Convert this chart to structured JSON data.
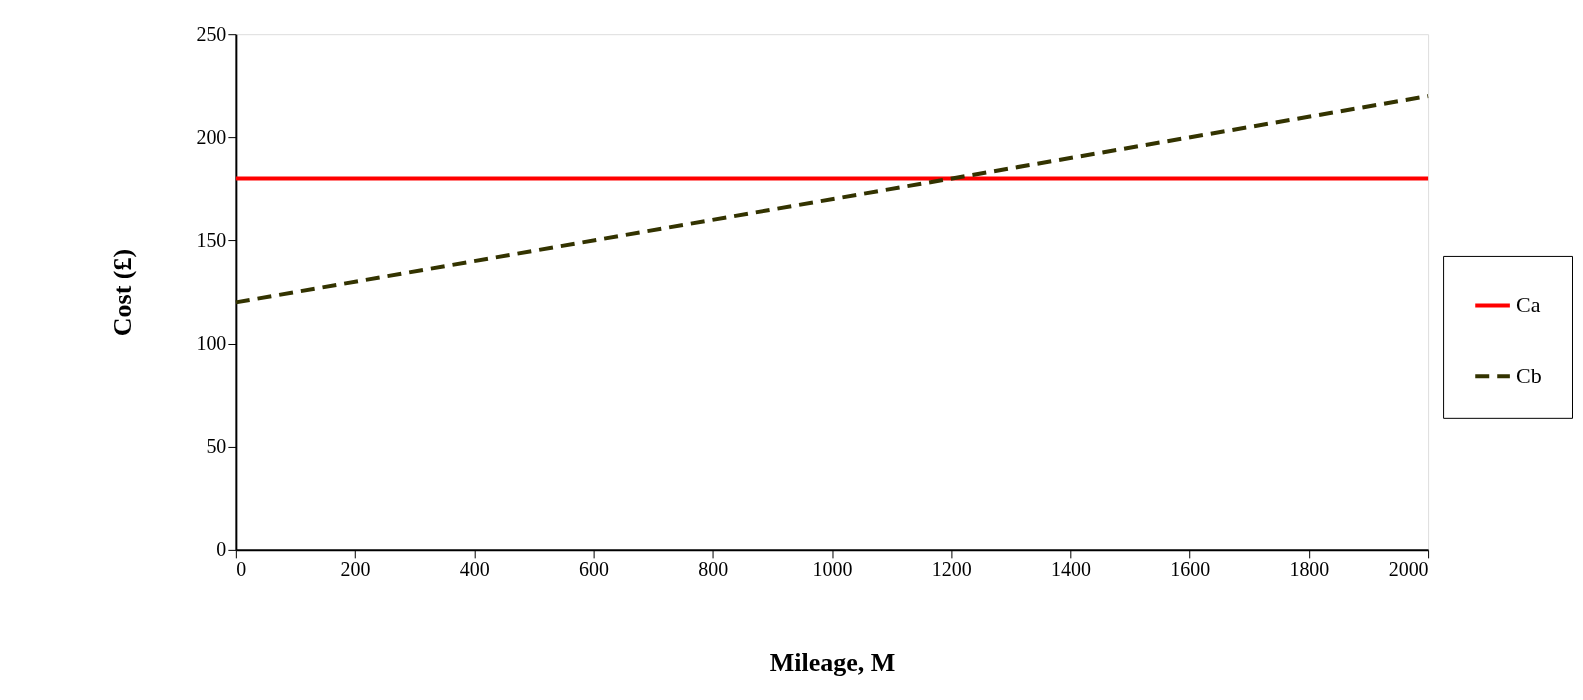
{
  "chart_data": {
    "type": "line",
    "xlabel": "Mileage, M",
    "ylabel": "Cost (£)",
    "xlim": [
      0,
      2000
    ],
    "xticks": [
      0,
      200,
      400,
      600,
      800,
      1000,
      1200,
      1400,
      1600,
      1800,
      2000
    ],
    "ylim": [
      0,
      250
    ],
    "yticks": [
      0,
      50,
      100,
      150,
      200,
      250
    ],
    "x": [
      0,
      2000
    ],
    "grid": false,
    "legend": "right",
    "marker": "none",
    "series": [
      {
        "name": "Ca",
        "color": "#ff0000",
        "line_style": "solid",
        "values": [
          180,
          180
        ]
      },
      {
        "name": "Cb",
        "color": "#333300",
        "line_style": "dashed",
        "values": [
          120,
          220
        ]
      }
    ]
  }
}
